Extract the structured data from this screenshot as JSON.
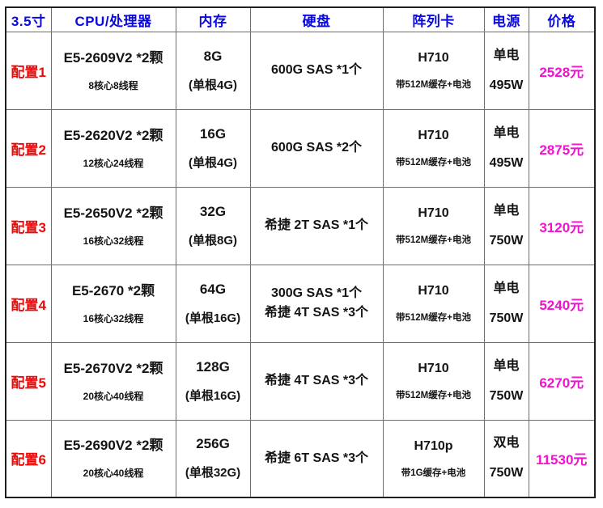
{
  "table": {
    "headers": [
      "3.5寸",
      "CPU/处理器",
      "内存",
      "硬盘",
      "阵列卡",
      "电源",
      "价格"
    ],
    "rows": [
      {
        "config": "配置1",
        "cpu_main": "E5-2609V2 *2颗",
        "cpu_sub": "8核心8线程",
        "ram_main": "8G",
        "ram_sub": "(单根4G)",
        "disk_line1": "600G SAS *1个",
        "disk_line2": "",
        "raid_main": "H710",
        "raid_sub": "带512M缓存+电池",
        "psu_line1": "单电",
        "psu_line2": "495W",
        "price": "2528元"
      },
      {
        "config": "配置2",
        "cpu_main": "E5-2620V2 *2颗",
        "cpu_sub": "12核心24线程",
        "ram_main": "16G",
        "ram_sub": "(单根4G)",
        "disk_line1": "600G SAS *2个",
        "disk_line2": "",
        "raid_main": "H710",
        "raid_sub": "带512M缓存+电池",
        "psu_line1": "单电",
        "psu_line2": "495W",
        "price": "2875元"
      },
      {
        "config": "配置3",
        "cpu_main": "E5-2650V2 *2颗",
        "cpu_sub": "16核心32线程",
        "ram_main": "32G",
        "ram_sub": "(单根8G)",
        "disk_line1": "希捷 2T SAS *1个",
        "disk_line2": "",
        "raid_main": "H710",
        "raid_sub": "带512M缓存+电池",
        "psu_line1": "单电",
        "psu_line2": "750W",
        "price": "3120元"
      },
      {
        "config": "配置4",
        "cpu_main": "E5-2670 *2颗",
        "cpu_sub": "16核心32线程",
        "ram_main": "64G",
        "ram_sub": "(单根16G)",
        "disk_line1": "300G SAS *1个",
        "disk_line2": "希捷 4T SAS *3个",
        "raid_main": "H710",
        "raid_sub": "带512M缓存+电池",
        "psu_line1": "单电",
        "psu_line2": "750W",
        "price": "5240元"
      },
      {
        "config": "配置5",
        "cpu_main": "E5-2670V2 *2颗",
        "cpu_sub": "20核心40线程",
        "ram_main": "128G",
        "ram_sub": "(单根16G)",
        "disk_line1": "希捷 4T SAS *3个",
        "disk_line2": "",
        "raid_main": "H710",
        "raid_sub": "带512M缓存+电池",
        "psu_line1": "单电",
        "psu_line2": "750W",
        "price": "6270元"
      },
      {
        "config": "配置6",
        "cpu_main": "E5-2690V2 *2颗",
        "cpu_sub": "20核心40线程",
        "ram_main": "256G",
        "ram_sub": "(单根32G)",
        "disk_line1": "希捷 6T SAS *3个",
        "disk_line2": "",
        "raid_main": "H710p",
        "raid_sub": "带1G缓存+电池",
        "psu_line1": "双电",
        "psu_line2": "750W",
        "price": "11530元"
      }
    ],
    "colors": {
      "header_text": "#0a0ae0",
      "config_text": "#f00808",
      "price_text": "#f211cf",
      "body_text": "#141414",
      "grid_line": "#6e6e6e",
      "outer_border": "#1f1f1f",
      "background": "#ffffff"
    }
  }
}
